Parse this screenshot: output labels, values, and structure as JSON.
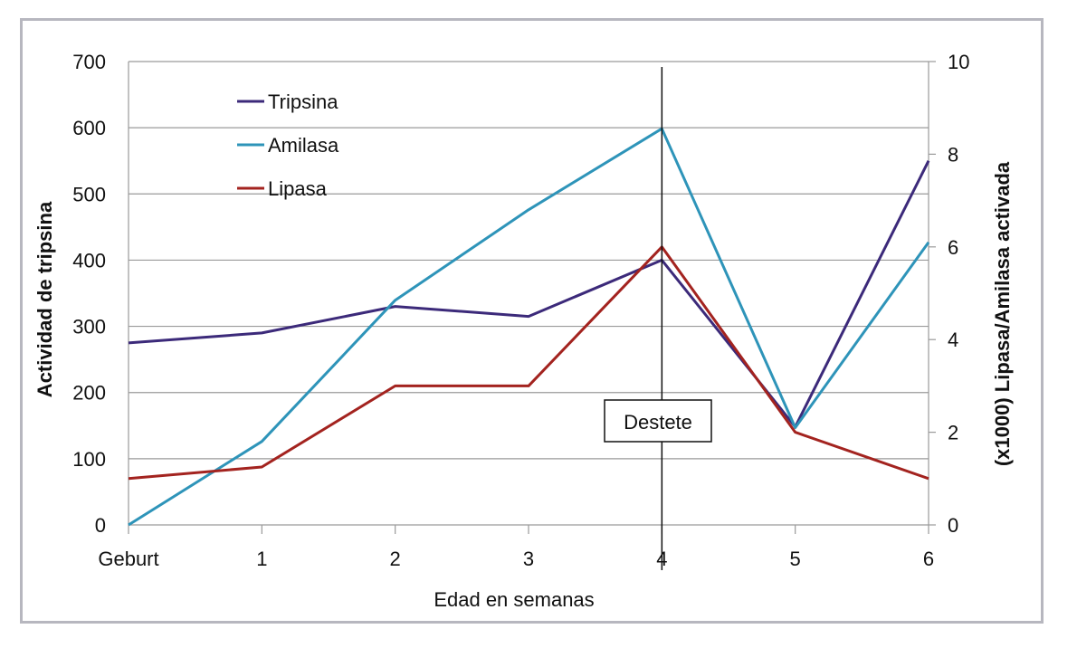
{
  "chart_data": {
    "type": "line",
    "xlabel": "Edad en semanas",
    "ylabel_left": "Actividad de tripsina",
    "ylabel_right": "(x1000) Lipasa/Amilasa activada",
    "categories": [
      "Geburt",
      "1",
      "2",
      "3",
      "4",
      "5",
      "6"
    ],
    "y_left": {
      "min": 0,
      "max": 700,
      "ticks": [
        "0",
        "100",
        "200",
        "300",
        "400",
        "500",
        "600",
        "700"
      ]
    },
    "y_right": {
      "min": 0,
      "max": 10,
      "ticks": [
        "0",
        "2",
        "4",
        "6",
        "8",
        "10"
      ]
    },
    "grid": true,
    "legend_position": "top-left",
    "series": [
      {
        "name": "Tripsina",
        "axis": "left",
        "color": "#3c2a7a",
        "values": [
          275,
          290,
          330,
          315,
          400,
          148,
          550
        ]
      },
      {
        "name": "Amilasa",
        "axis": "right",
        "color": "#2e94b9",
        "values": [
          0,
          1.8,
          4.85,
          6.8,
          8.55,
          2.1,
          6.1
        ]
      },
      {
        "name": "Lipasa",
        "axis": "right",
        "color": "#a3231f",
        "values": [
          1.0,
          1.25,
          3.0,
          3.0,
          6.0,
          2.0,
          1.0
        ]
      }
    ],
    "annotation": {
      "label": "Destete",
      "at_category": "4"
    }
  }
}
